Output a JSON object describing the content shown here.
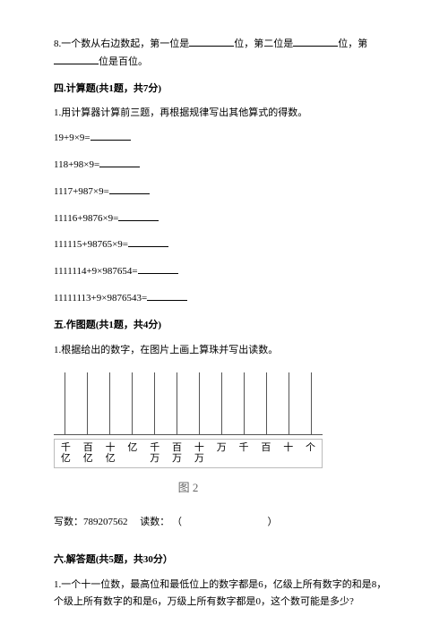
{
  "q8": {
    "text1": "8.一个数从右边数起，第一位是",
    "text2": "位，第二位是",
    "text3": "位，第",
    "text4": "位是百位。"
  },
  "section4": {
    "title": "四.计算题(共1题，共7分)",
    "q1": "1.用计算器计算前三题，再根据规律写出其他算式的得数。",
    "exprs": [
      "19+9×9=",
      "118+98×9=",
      "1117+987×9=",
      "11116+9876×9=",
      "111115+98765×9=",
      "1111114+9×987654=",
      "11111113+9×9876543="
    ]
  },
  "section5": {
    "title": "五.作图题(共1题，共4分)",
    "q1": "1.根据给出的数字，在图片上画上算珠并写出读数。",
    "places": [
      [
        "千",
        "亿"
      ],
      [
        "百",
        "亿"
      ],
      [
        "十",
        "亿"
      ],
      [
        "亿",
        ""
      ],
      [
        "千",
        "万"
      ],
      [
        "百",
        "万"
      ],
      [
        "十",
        "万"
      ],
      [
        "万",
        ""
      ],
      [
        "千",
        ""
      ],
      [
        "百",
        ""
      ],
      [
        "十",
        ""
      ],
      [
        "个",
        ""
      ]
    ],
    "caption": "图 2",
    "write_label": "写数：",
    "write_value": "789207562",
    "read_label": "读数：",
    "paren_open": "（",
    "paren_close": "）"
  },
  "section6": {
    "title": "六.解答题(共5题，共30分）",
    "q1": "1.一个十一位数，最高位和最低位上的数字都是6，亿级上所有数字的和是8，个级上所有数字的和是6，万级上所有数字都是0，这个数可能是多少?"
  }
}
